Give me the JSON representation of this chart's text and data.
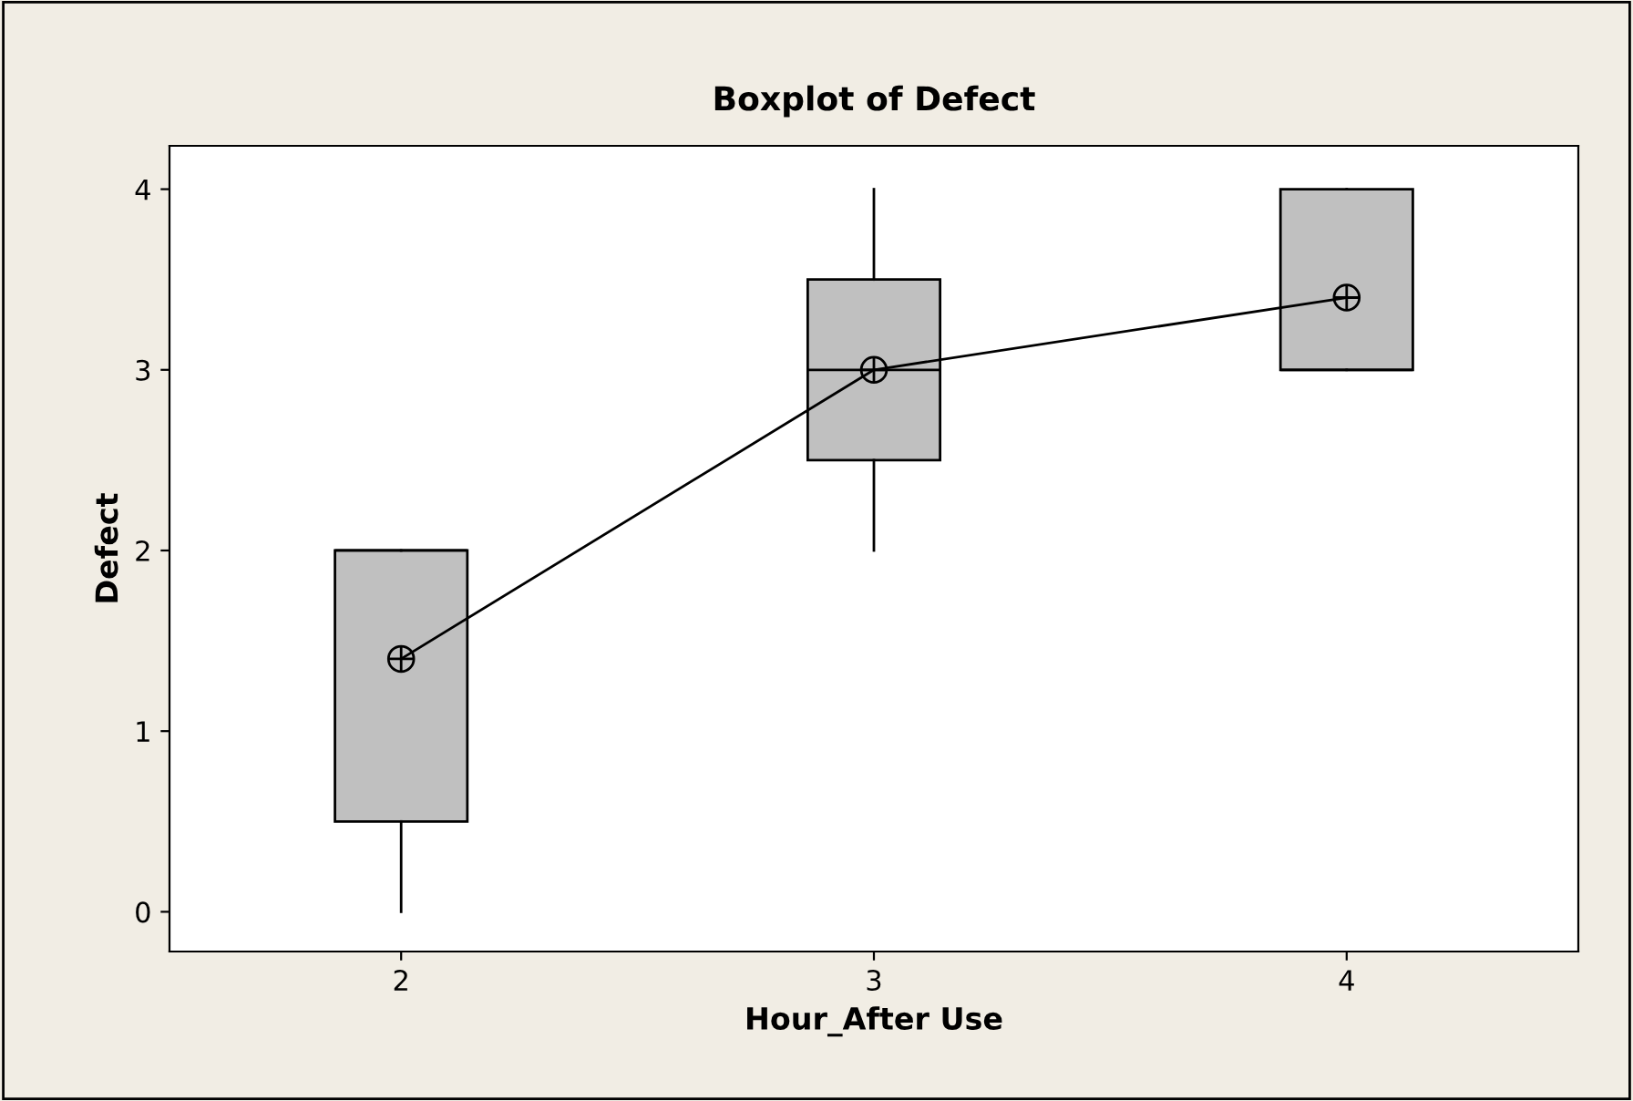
{
  "chart_data": {
    "type": "box",
    "title": "Boxplot of Defect",
    "xlabel": "Hour_After Use",
    "ylabel": "Defect",
    "categories": [
      "2",
      "3",
      "4"
    ],
    "boxes": [
      {
        "low": 0,
        "q1": 0.5,
        "median": 2,
        "q3": 2,
        "high": 2
      },
      {
        "low": 2,
        "q1": 2.5,
        "median": 3,
        "q3": 3.5,
        "high": 4
      },
      {
        "low": 3,
        "q1": 3,
        "median": 3,
        "q3": 4,
        "high": 4
      }
    ],
    "color": "#c0c0c0",
    "series": [
      {
        "type": "line",
        "color": "#000000",
        "values": [
          1.4,
          3,
          3.4
        ],
        "marker": "circle"
      }
    ],
    "ylim": [
      -0.22,
      4.24
    ],
    "yticks": [
      0,
      1,
      2,
      3,
      4
    ],
    "grid": false
  }
}
